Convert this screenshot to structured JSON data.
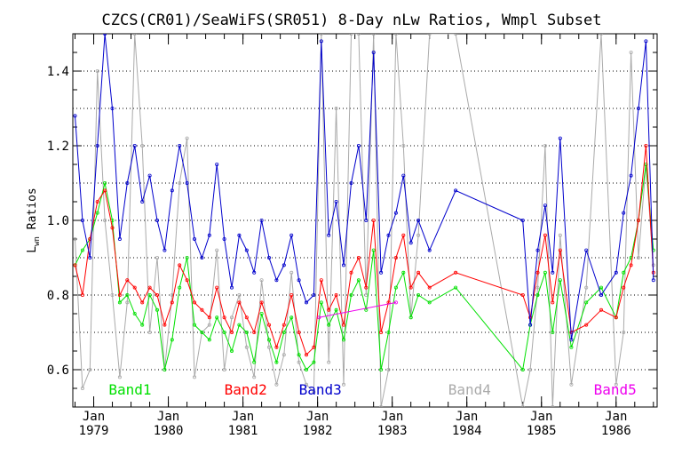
{
  "chart_data": {
    "type": "line",
    "title": "CZCS(CR01)/SeaWiFS(SR051) 8-Day nLw Ratios, Wmpl Subset",
    "ylabel_main": "L",
    "ylabel_sub": "wn",
    "ylabel_rest": " Ratios",
    "xlim": [
      1978.72,
      1986.55
    ],
    "ylim": [
      0.5,
      1.5
    ],
    "yticks": [
      0.6,
      0.8,
      1.0,
      1.2,
      1.4
    ],
    "ytick_labels": [
      "0.6",
      "0.8",
      "1.0",
      "1.2",
      "1.4"
    ],
    "grid": true,
    "xtick_groups": [
      {
        "month": "Jan",
        "year": "1979",
        "x": 1979.0
      },
      {
        "month": "Jan",
        "year": "1980",
        "x": 1980.0
      },
      {
        "month": "Jan",
        "year": "1981",
        "x": 1981.0
      },
      {
        "month": "Jan",
        "year": "1982",
        "x": 1982.0
      },
      {
        "month": "Jan",
        "year": "1983",
        "x": 1983.0
      },
      {
        "month": "Jan",
        "year": "1984",
        "x": 1984.0
      },
      {
        "month": "Jan",
        "year": "1985",
        "x": 1985.0
      },
      {
        "month": "Jan",
        "year": "1986",
        "x": 1986.0
      }
    ],
    "series": [
      {
        "name": "Band1",
        "color": "#00e000",
        "legend_x": 1979.2,
        "x": [
          1978.75,
          1978.85,
          1978.95,
          1979.05,
          1979.15,
          1979.25,
          1979.35,
          1979.45,
          1979.55,
          1979.65,
          1979.75,
          1979.85,
          1979.95,
          1980.05,
          1980.15,
          1980.25,
          1980.35,
          1980.45,
          1980.55,
          1980.65,
          1980.75,
          1980.85,
          1980.95,
          1981.05,
          1981.15,
          1981.25,
          1981.35,
          1981.45,
          1981.55,
          1981.65,
          1981.75,
          1981.85,
          1981.95,
          1982.05,
          1982.15,
          1982.25,
          1982.35,
          1982.45,
          1982.55,
          1982.65,
          1982.75,
          1982.85,
          1982.95,
          1983.05,
          1983.15,
          1983.25,
          1983.35,
          1983.5,
          1983.85,
          1984.75,
          1984.85,
          1984.95,
          1985.05,
          1985.15,
          1985.25,
          1985.4,
          1985.6,
          1985.8,
          1986.0,
          1986.1,
          1986.2,
          1986.3,
          1986.4,
          1986.5
        ],
        "y": [
          0.88,
          0.92,
          0.95,
          1.02,
          1.1,
          1.0,
          0.78,
          0.8,
          0.75,
          0.72,
          0.8,
          0.76,
          0.6,
          0.68,
          0.82,
          0.9,
          0.72,
          0.7,
          0.68,
          0.74,
          0.7,
          0.65,
          0.72,
          0.7,
          0.62,
          0.75,
          0.68,
          0.62,
          0.7,
          0.74,
          0.64,
          0.6,
          0.62,
          0.78,
          0.72,
          0.76,
          0.68,
          0.8,
          0.84,
          0.76,
          0.92,
          0.6,
          0.7,
          0.82,
          0.86,
          0.74,
          0.8,
          0.78,
          0.82,
          0.6,
          0.72,
          0.8,
          0.86,
          0.7,
          0.84,
          0.66,
          0.78,
          0.82,
          0.74,
          0.86,
          0.9,
          1.0,
          1.15,
          0.92
        ]
      },
      {
        "name": "Band2",
        "color": "#ff0000",
        "legend_x": 1980.75,
        "x": [
          1978.75,
          1978.85,
          1978.95,
          1979.05,
          1979.15,
          1979.25,
          1979.35,
          1979.45,
          1979.55,
          1979.65,
          1979.75,
          1979.85,
          1979.95,
          1980.05,
          1980.15,
          1980.25,
          1980.35,
          1980.45,
          1980.55,
          1980.65,
          1980.75,
          1980.85,
          1980.95,
          1981.05,
          1981.15,
          1981.25,
          1981.35,
          1981.45,
          1981.55,
          1981.65,
          1981.75,
          1981.85,
          1981.95,
          1982.05,
          1982.15,
          1982.25,
          1982.35,
          1982.45,
          1982.55,
          1982.65,
          1982.75,
          1982.85,
          1982.95,
          1983.05,
          1983.15,
          1983.25,
          1983.35,
          1983.5,
          1983.85,
          1984.75,
          1984.85,
          1984.95,
          1985.05,
          1985.15,
          1985.25,
          1985.4,
          1985.6,
          1985.8,
          1986.0,
          1986.1,
          1986.2,
          1986.3,
          1986.4,
          1986.5
        ],
        "y": [
          0.88,
          0.8,
          0.95,
          1.05,
          1.08,
          0.98,
          0.8,
          0.84,
          0.82,
          0.78,
          0.82,
          0.8,
          0.72,
          0.78,
          0.88,
          0.84,
          0.78,
          0.76,
          0.74,
          0.82,
          0.74,
          0.7,
          0.78,
          0.74,
          0.7,
          0.78,
          0.72,
          0.66,
          0.72,
          0.8,
          0.7,
          0.64,
          0.66,
          0.84,
          0.76,
          0.8,
          0.72,
          0.86,
          0.9,
          0.82,
          1.0,
          0.7,
          0.78,
          0.9,
          0.96,
          0.82,
          0.86,
          0.82,
          0.86,
          0.8,
          0.74,
          0.86,
          0.96,
          0.78,
          0.92,
          0.7,
          0.72,
          0.76,
          0.74,
          0.82,
          0.88,
          1.0,
          1.2,
          0.86
        ]
      },
      {
        "name": "Band3",
        "color": "#0000cc",
        "legend_x": 1981.75,
        "x": [
          1978.75,
          1978.85,
          1978.95,
          1979.05,
          1979.15,
          1979.25,
          1979.35,
          1979.45,
          1979.55,
          1979.65,
          1979.75,
          1979.85,
          1979.95,
          1980.05,
          1980.15,
          1980.25,
          1980.35,
          1980.45,
          1980.55,
          1980.65,
          1980.75,
          1980.85,
          1980.95,
          1981.05,
          1981.15,
          1981.25,
          1981.35,
          1981.45,
          1981.55,
          1981.65,
          1981.75,
          1981.85,
          1981.95,
          1982.05,
          1982.15,
          1982.25,
          1982.35,
          1982.45,
          1982.55,
          1982.65,
          1982.75,
          1982.85,
          1982.95,
          1983.05,
          1983.15,
          1983.25,
          1983.35,
          1983.5,
          1983.85,
          1984.75,
          1984.85,
          1984.95,
          1985.05,
          1985.15,
          1985.25,
          1985.4,
          1985.6,
          1985.8,
          1986.0,
          1986.1,
          1986.2,
          1986.3,
          1986.4,
          1986.5
        ],
        "y": [
          1.28,
          1.0,
          0.9,
          1.2,
          1.5,
          1.3,
          0.95,
          1.1,
          1.2,
          1.05,
          1.12,
          1.0,
          0.92,
          1.08,
          1.2,
          1.1,
          0.95,
          0.9,
          0.96,
          1.15,
          0.95,
          0.82,
          0.96,
          0.92,
          0.86,
          1.0,
          0.9,
          0.84,
          0.88,
          0.96,
          0.84,
          0.78,
          0.8,
          1.48,
          0.96,
          1.05,
          0.88,
          1.1,
          1.2,
          1.0,
          1.45,
          0.86,
          0.96,
          1.02,
          1.12,
          0.94,
          1.0,
          0.92,
          1.08,
          1.0,
          0.72,
          0.92,
          1.04,
          0.86,
          1.22,
          0.68,
          0.92,
          0.8,
          0.86,
          1.02,
          1.12,
          1.3,
          1.48,
          0.84
        ]
      },
      {
        "name": "Band4",
        "color": "#aaaaaa",
        "legend_x": 1983.75,
        "x": [
          1978.75,
          1978.85,
          1978.95,
          1979.05,
          1979.15,
          1979.25,
          1979.35,
          1979.45,
          1979.55,
          1979.65,
          1979.75,
          1979.85,
          1979.95,
          1980.05,
          1980.15,
          1980.25,
          1980.35,
          1980.45,
          1980.55,
          1980.65,
          1980.75,
          1980.85,
          1980.95,
          1981.05,
          1981.15,
          1981.25,
          1981.35,
          1981.45,
          1981.55,
          1981.65,
          1981.75,
          1981.85,
          1981.95,
          1982.05,
          1982.15,
          1982.25,
          1982.35,
          1982.45,
          1982.55,
          1982.65,
          1982.75,
          1982.85,
          1982.95,
          1983.05,
          1983.15,
          1983.25,
          1983.35,
          1983.5,
          1983.85,
          1984.75,
          1984.85,
          1984.95,
          1985.05,
          1985.15,
          1985.25,
          1985.4,
          1985.6,
          1985.8,
          1986.0,
          1986.1,
          1986.2,
          1986.3,
          1986.4,
          1986.5
        ],
        "y": [
          0.95,
          0.55,
          0.6,
          1.4,
          1.0,
          0.8,
          0.58,
          0.78,
          1.5,
          1.2,
          0.7,
          0.9,
          0.6,
          0.8,
          1.1,
          1.22,
          0.58,
          0.7,
          0.72,
          0.92,
          0.6,
          0.74,
          0.8,
          0.66,
          0.58,
          0.84,
          0.66,
          0.56,
          0.64,
          0.86,
          0.62,
          0.56,
          0.54,
          1.5,
          0.62,
          1.3,
          0.56,
          1.5,
          1.5,
          0.8,
          1.5,
          0.5,
          0.6,
          1.5,
          1.2,
          0.74,
          0.96,
          1.5,
          1.5,
          0.5,
          0.6,
          0.82,
          1.2,
          0.5,
          0.96,
          0.56,
          0.82,
          1.5,
          0.56,
          0.7,
          1.45,
          0.9,
          1.15,
          0.88
        ]
      },
      {
        "name": "Band5",
        "color": "#ee00ee",
        "legend_x": 1985.7,
        "x": [
          1982.02,
          1983.05
        ],
        "y": [
          0.74,
          0.78
        ]
      }
    ]
  }
}
